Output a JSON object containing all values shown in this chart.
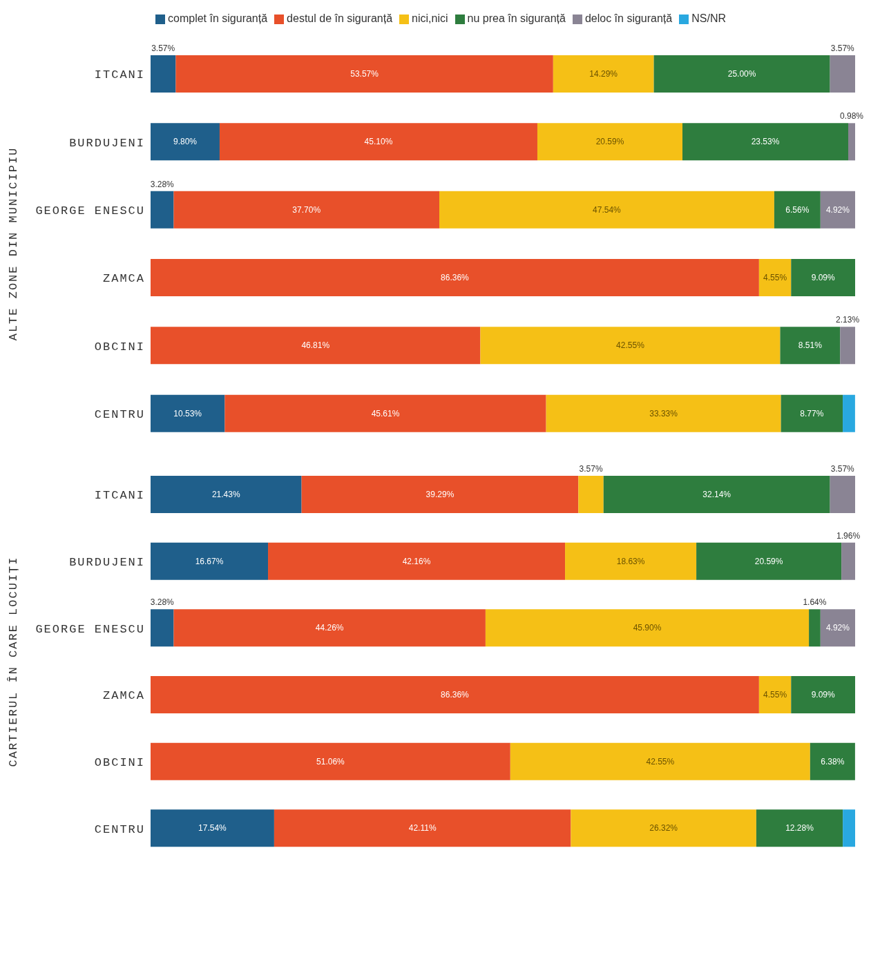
{
  "chart_data": [
    {
      "type": "bar",
      "orientation": "horizontal",
      "stacked": true,
      "ylabel": "ALTE ZONE DIN MUNICIPIU",
      "legend": "top",
      "tick_labels": "y",
      "xlim": [
        0,
        100
      ],
      "categories": [
        "ITCANI",
        "BURDUJENI",
        "GEORGE ENESCU",
        "ZAMCA",
        "OBCINI",
        "CENTRU"
      ],
      "series": [
        {
          "name": "complet în siguranță",
          "color": "#1f5f8b",
          "values": [
            3.57,
            9.8,
            3.28,
            0,
            0,
            10.53
          ],
          "value_labels": [
            "3.57%",
            "9.80%",
            "3.28%",
            null,
            null,
            "10.53%"
          ]
        },
        {
          "name": "destul de în siguranță",
          "color": "#e8502a",
          "values": [
            53.57,
            45.1,
            37.7,
            86.36,
            46.81,
            45.61
          ],
          "value_labels": [
            "53.57%",
            "45.10%",
            "37.70%",
            "86.36%",
            "46.81%",
            "45.61%"
          ]
        },
        {
          "name": "nici,nici",
          "color": "#f5c016",
          "values": [
            14.29,
            20.59,
            47.54,
            4.55,
            42.55,
            33.33
          ],
          "value_labels": [
            "14.29%",
            "20.59%",
            "47.54%",
            "4.55%",
            "42.55%",
            "33.33%"
          ]
        },
        {
          "name": "nu prea în siguranță",
          "color": "#2e7d3e",
          "values": [
            25.0,
            23.53,
            6.56,
            9.09,
            8.51,
            8.77
          ],
          "value_labels": [
            "25.00%",
            "23.53%",
            "6.56%",
            "9.09%",
            "8.51%",
            "8.77%"
          ]
        },
        {
          "name": "deloc în siguranță",
          "color": "#8a8494",
          "values": [
            3.57,
            0.98,
            4.92,
            0,
            2.13,
            0
          ],
          "value_labels": [
            "3.57%",
            "0.98%",
            "4.92%",
            null,
            "2.13%",
            null
          ]
        },
        {
          "name": "NS/NR",
          "color": "#29a8e0",
          "values": [
            0,
            0,
            0,
            0,
            0,
            1.75
          ],
          "value_labels": [
            null,
            null,
            null,
            null,
            null,
            null
          ]
        }
      ]
    },
    {
      "type": "bar",
      "orientation": "horizontal",
      "stacked": true,
      "ylabel": "CARTIERUL ÎN CARE LOCUIȚI",
      "tick_labels": "y",
      "xlim": [
        0,
        100
      ],
      "categories": [
        "ITCANI",
        "BURDUJENI",
        "GEORGE ENESCU",
        "ZAMCA",
        "OBCINI",
        "CENTRU"
      ],
      "series": [
        {
          "color": "#1f5f8b",
          "values": [
            21.43,
            16.67,
            3.28,
            0,
            0,
            17.54
          ],
          "value_labels": [
            "21.43%",
            "16.67%",
            "3.28%",
            null,
            null,
            "17.54%"
          ]
        },
        {
          "color": "#e8502a",
          "values": [
            39.29,
            42.16,
            44.26,
            86.36,
            51.06,
            42.11
          ],
          "value_labels": [
            "39.29%",
            "42.16%",
            "44.26%",
            "86.36%",
            "51.06%",
            "42.11%"
          ]
        },
        {
          "color": "#f5c016",
          "values": [
            3.57,
            18.63,
            45.9,
            4.55,
            42.55,
            26.32
          ],
          "value_labels": [
            "3.57%",
            "18.63%",
            "45.90%",
            "4.55%",
            "42.55%",
            "26.32%"
          ]
        },
        {
          "color": "#2e7d3e",
          "values": [
            32.14,
            20.59,
            1.64,
            9.09,
            6.38,
            12.28
          ],
          "value_labels": [
            "32.14%",
            "20.59%",
            "1.64%",
            "9.09%",
            "6.38%",
            "12.28%"
          ]
        },
        {
          "color": "#8a8494",
          "values": [
            3.57,
            1.96,
            4.92,
            0,
            0,
            0
          ],
          "value_labels": [
            "3.57%",
            "1.96%",
            "4.92%",
            null,
            null,
            null
          ]
        },
        {
          "color": "#29a8e0",
          "values": [
            0,
            0,
            0,
            0,
            0,
            1.75
          ],
          "value_labels": [
            null,
            null,
            null,
            null,
            null,
            null
          ]
        }
      ]
    }
  ]
}
